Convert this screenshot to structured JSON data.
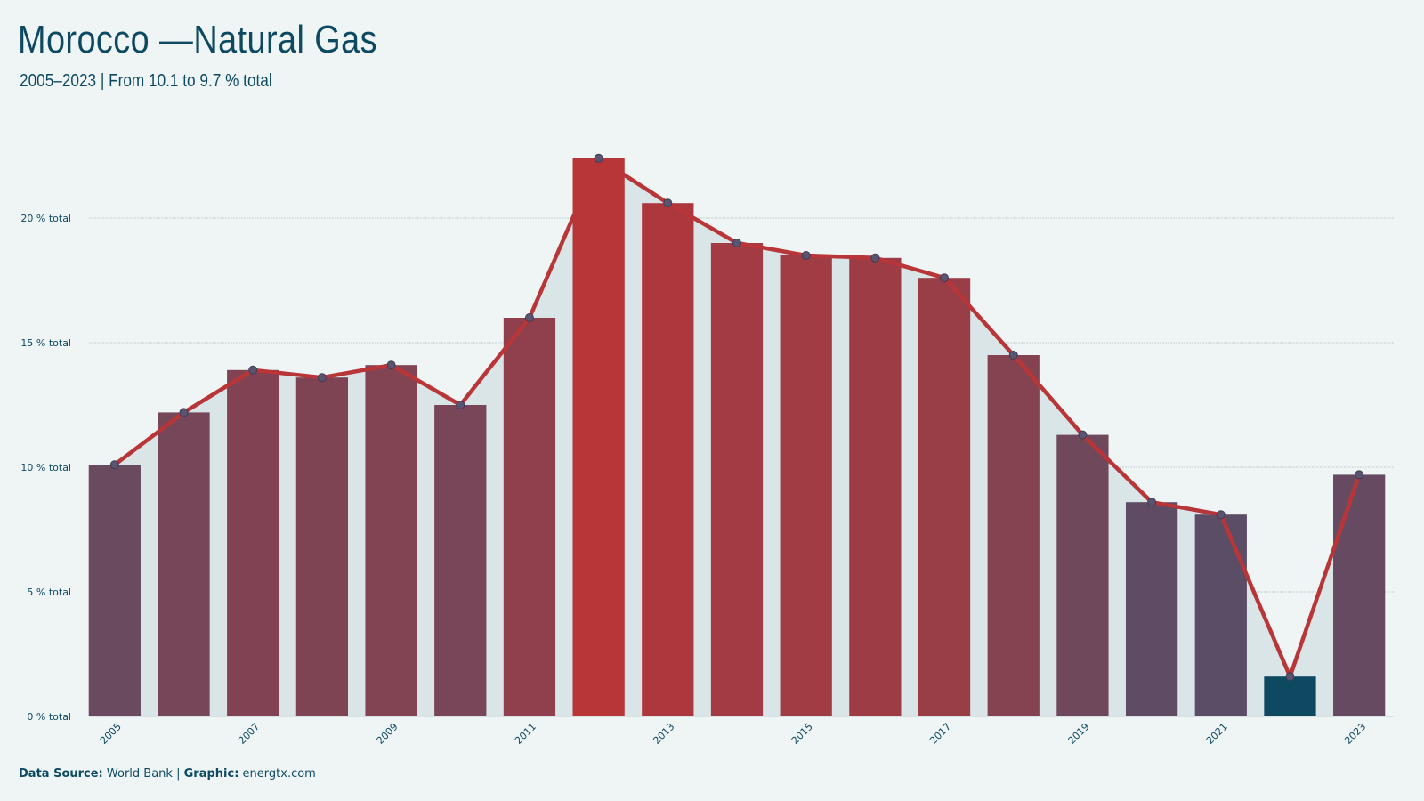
{
  "header": {
    "title": "Morocco —Natural Gas",
    "subtitle": "2005–2023 | From 10.1 to 9.7 % total"
  },
  "footer": {
    "source_label": "Data Source:",
    "source_value": "World Bank",
    "separator": "|",
    "graphic_label": "Graphic:",
    "graphic_value": "energtx.com"
  },
  "chart_data": {
    "type": "bar",
    "overlay": "line-with-markers-and-area",
    "categories": [
      "2005",
      "2006",
      "2007",
      "2008",
      "2009",
      "2010",
      "2011",
      "2012",
      "2013",
      "2014",
      "2015",
      "2016",
      "2017",
      "2018",
      "2019",
      "2020",
      "2021",
      "2022",
      "2023"
    ],
    "values": [
      10.1,
      12.2,
      13.9,
      13.6,
      14.1,
      12.5,
      16.0,
      22.4,
      20.6,
      19.0,
      18.5,
      18.4,
      17.6,
      14.5,
      11.3,
      8.6,
      8.1,
      1.6,
      9.7
    ],
    "x_tick_labels": [
      "2005",
      "2007",
      "2009",
      "2011",
      "2013",
      "2015",
      "2017",
      "2019",
      "2021",
      "2023"
    ],
    "y_ticks": [
      0,
      5,
      10,
      15,
      20
    ],
    "y_tick_suffix": " % total",
    "ylim": [
      0,
      22.5
    ],
    "grid": "horizontal",
    "colors": {
      "high": "#b83538",
      "low": "#5b4d66",
      "min_bar": "#0d4a62",
      "line": "#b83538",
      "marker_fill": "#5b5470",
      "area": "#d9e5e7",
      "gridline": "#c3cfd3"
    }
  }
}
